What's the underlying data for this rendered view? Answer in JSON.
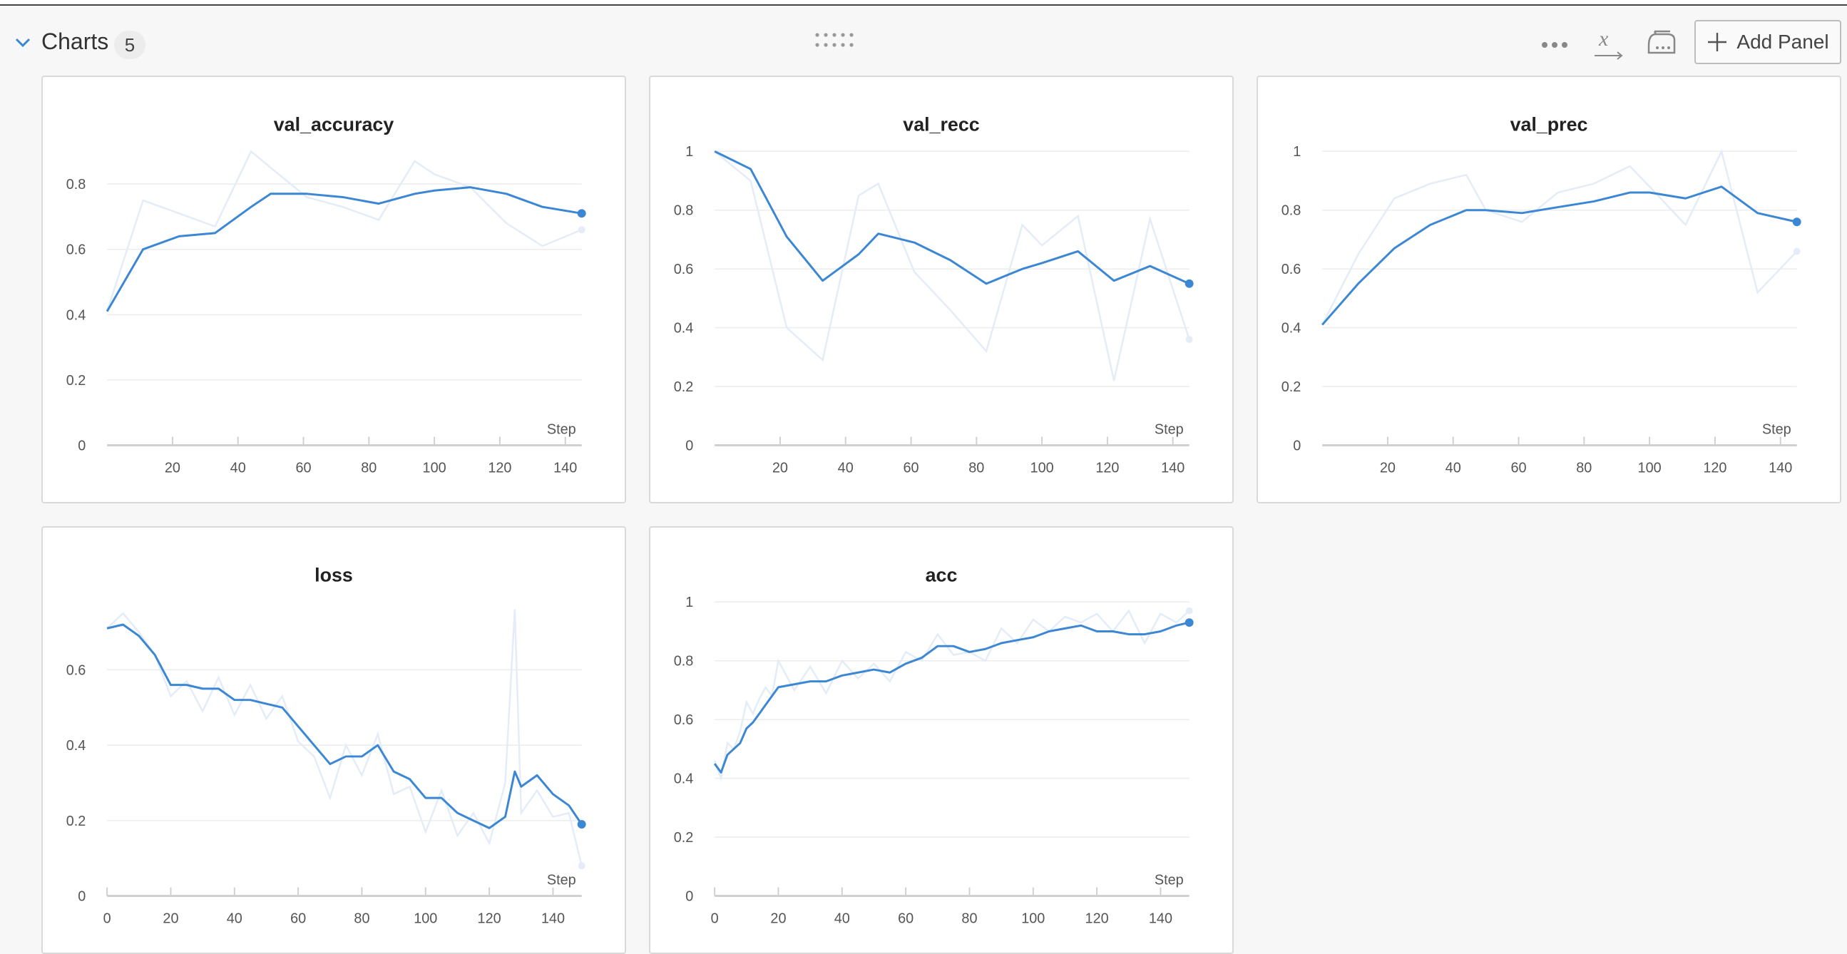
{
  "section": {
    "title": "Charts",
    "count": "5"
  },
  "toolbar": {
    "add_panel_label": "Add Panel"
  },
  "icons": {
    "collapse": "chevron-down-icon",
    "drag": "drag-handle-icon",
    "more": "more-icon",
    "x_axis": "x-axis-icon",
    "smoothing": "iron-icon",
    "add": "plus-icon"
  },
  "colors": {
    "accent": "#3c87d4",
    "raw_line": "#e3ecf7",
    "grid": "#ececec"
  },
  "chart_data": [
    {
      "type": "line",
      "title": "val_accuracy",
      "xlabel": "Step",
      "ylabel": "",
      "xlim": [
        0,
        145
      ],
      "ylim": [
        0,
        0.9
      ],
      "xticks": [
        "20",
        "40",
        "60",
        "80",
        "100",
        "120",
        "140"
      ],
      "yticks": [
        "0",
        "0.2",
        "0.4",
        "0.6",
        "0.8"
      ],
      "x": [
        0,
        11,
        22,
        33,
        44,
        50,
        61,
        72,
        83,
        94,
        100,
        111,
        122,
        133,
        145
      ],
      "raw": [
        0.41,
        0.75,
        0.71,
        0.67,
        0.9,
        0.85,
        0.76,
        0.73,
        0.69,
        0.87,
        0.83,
        0.79,
        0.68,
        0.61,
        0.66
      ],
      "smoothed": [
        0.41,
        0.6,
        0.64,
        0.65,
        0.73,
        0.77,
        0.77,
        0.76,
        0.74,
        0.77,
        0.78,
        0.79,
        0.77,
        0.73,
        0.71
      ]
    },
    {
      "type": "line",
      "title": "val_recc",
      "xlabel": "Step",
      "ylabel": "",
      "xlim": [
        0,
        145
      ],
      "ylim": [
        0,
        1
      ],
      "xticks": [
        "20",
        "40",
        "60",
        "80",
        "100",
        "120",
        "140"
      ],
      "yticks": [
        "0",
        "0.2",
        "0.4",
        "0.6",
        "0.8",
        "1"
      ],
      "x": [
        0,
        11,
        22,
        33,
        44,
        50,
        61,
        72,
        83,
        94,
        100,
        111,
        122,
        133,
        145
      ],
      "raw": [
        1.0,
        0.9,
        0.4,
        0.29,
        0.85,
        0.89,
        0.59,
        0.46,
        0.32,
        0.75,
        0.68,
        0.78,
        0.22,
        0.77,
        0.36
      ],
      "smoothed": [
        1.0,
        0.94,
        0.71,
        0.56,
        0.65,
        0.72,
        0.69,
        0.63,
        0.55,
        0.6,
        0.62,
        0.66,
        0.56,
        0.61,
        0.55
      ]
    },
    {
      "type": "line",
      "title": "val_prec",
      "xlabel": "Step",
      "ylabel": "",
      "xlim": [
        0,
        145
      ],
      "ylim": [
        0,
        1
      ],
      "xticks": [
        "20",
        "40",
        "60",
        "80",
        "100",
        "120",
        "140"
      ],
      "yticks": [
        "0",
        "0.2",
        "0.4",
        "0.6",
        "0.8",
        "1"
      ],
      "x": [
        0,
        11,
        22,
        33,
        44,
        50,
        61,
        72,
        83,
        94,
        100,
        111,
        122,
        133,
        145
      ],
      "raw": [
        0.41,
        0.65,
        0.84,
        0.89,
        0.92,
        0.8,
        0.76,
        0.86,
        0.89,
        0.95,
        0.88,
        0.75,
        1.0,
        0.52,
        0.66
      ],
      "smoothed": [
        0.41,
        0.55,
        0.67,
        0.75,
        0.8,
        0.8,
        0.79,
        0.81,
        0.83,
        0.86,
        0.86,
        0.84,
        0.88,
        0.79,
        0.76
      ]
    },
    {
      "type": "line",
      "title": "loss",
      "xlabel": "Step",
      "ylabel": "",
      "xlim": [
        0,
        149
      ],
      "ylim": [
        0,
        0.78
      ],
      "xticks": [
        "0",
        "20",
        "40",
        "60",
        "80",
        "100",
        "120",
        "140"
      ],
      "yticks": [
        "0",
        "0.2",
        "0.4",
        "0.6"
      ],
      "x": [
        0,
        5,
        10,
        15,
        20,
        25,
        30,
        35,
        40,
        45,
        50,
        55,
        60,
        65,
        70,
        75,
        80,
        85,
        90,
        95,
        100,
        105,
        110,
        115,
        120,
        125,
        128,
        130,
        135,
        140,
        145,
        149
      ],
      "raw": [
        0.71,
        0.75,
        0.7,
        0.64,
        0.53,
        0.57,
        0.49,
        0.58,
        0.48,
        0.56,
        0.47,
        0.53,
        0.41,
        0.37,
        0.26,
        0.4,
        0.32,
        0.43,
        0.27,
        0.29,
        0.17,
        0.28,
        0.16,
        0.22,
        0.14,
        0.3,
        0.76,
        0.22,
        0.28,
        0.21,
        0.22,
        0.08
      ],
      "smoothed": [
        0.71,
        0.72,
        0.69,
        0.64,
        0.56,
        0.56,
        0.55,
        0.55,
        0.52,
        0.52,
        0.51,
        0.5,
        0.45,
        0.4,
        0.35,
        0.37,
        0.37,
        0.4,
        0.33,
        0.31,
        0.26,
        0.26,
        0.22,
        0.2,
        0.18,
        0.21,
        0.33,
        0.29,
        0.32,
        0.27,
        0.24,
        0.19
      ]
    },
    {
      "type": "line",
      "title": "acc",
      "xlabel": "Step",
      "ylabel": "",
      "xlim": [
        0,
        149
      ],
      "ylim": [
        0,
        1
      ],
      "xticks": [
        "0",
        "20",
        "40",
        "60",
        "80",
        "100",
        "120",
        "140"
      ],
      "yticks": [
        "0",
        "0.2",
        "0.4",
        "0.6",
        "0.8",
        "1"
      ],
      "x": [
        0,
        2,
        4,
        6,
        8,
        10,
        12,
        14,
        16,
        18,
        20,
        25,
        30,
        35,
        40,
        45,
        50,
        55,
        60,
        65,
        70,
        75,
        80,
        85,
        90,
        95,
        100,
        105,
        110,
        115,
        120,
        125,
        130,
        135,
        140,
        145,
        149
      ],
      "raw": [
        0.46,
        0.4,
        0.52,
        0.5,
        0.56,
        0.66,
        0.62,
        0.67,
        0.71,
        0.68,
        0.8,
        0.7,
        0.78,
        0.69,
        0.8,
        0.74,
        0.79,
        0.73,
        0.83,
        0.8,
        0.89,
        0.82,
        0.83,
        0.8,
        0.91,
        0.86,
        0.94,
        0.9,
        0.95,
        0.93,
        0.96,
        0.9,
        0.97,
        0.86,
        0.96,
        0.93,
        0.97
      ],
      "smoothed": [
        0.45,
        0.42,
        0.48,
        0.5,
        0.52,
        0.57,
        0.59,
        0.62,
        0.65,
        0.68,
        0.71,
        0.72,
        0.73,
        0.73,
        0.75,
        0.76,
        0.77,
        0.76,
        0.79,
        0.81,
        0.85,
        0.85,
        0.83,
        0.84,
        0.86,
        0.87,
        0.88,
        0.9,
        0.91,
        0.92,
        0.9,
        0.9,
        0.89,
        0.89,
        0.9,
        0.92,
        0.93
      ]
    }
  ]
}
